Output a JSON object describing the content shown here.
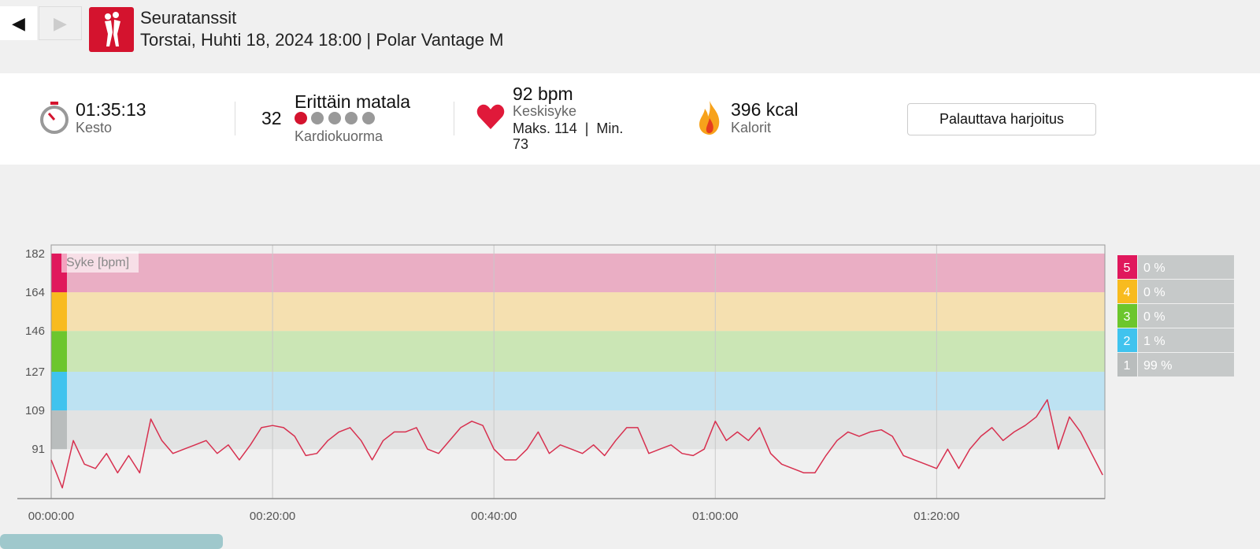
{
  "header": {
    "back": "◀",
    "forward": "▶",
    "sport": "Seuratanssit",
    "subtitle": "Torstai, Huhti 18, 2024 18:00 | Polar Vantage M"
  },
  "stats": {
    "duration": {
      "value": "01:35:13",
      "label": "Kesto"
    },
    "cardio_load": {
      "value": 32,
      "level": "Erittäin matala",
      "label": "Kardiokuorma"
    },
    "heart_rate": {
      "value": "92 bpm",
      "label": "Keskisyke",
      "range": "Maks. 114  |  Min. 73"
    },
    "calories": {
      "value": "396 kcal",
      "label": "Kalorit"
    },
    "button": "Palauttava harjoitus"
  },
  "chart_data": {
    "type": "line",
    "y_label": "Syke [bpm]",
    "color": "#d7304f",
    "x": [
      0,
      1,
      2,
      3,
      4,
      5,
      6,
      7,
      8,
      9,
      10,
      11,
      12,
      13,
      14,
      15,
      16,
      17,
      18,
      19,
      20,
      21,
      22,
      23,
      24,
      25,
      26,
      27,
      28,
      29,
      30,
      31,
      32,
      33,
      34,
      35,
      36,
      37,
      38,
      39,
      40,
      41,
      42,
      43,
      44,
      45,
      46,
      47,
      48,
      49,
      50,
      51,
      52,
      53,
      54,
      55,
      56,
      57,
      58,
      59,
      60,
      61,
      62,
      63,
      64,
      65,
      66,
      67,
      68,
      69,
      70,
      71,
      72,
      73,
      74,
      75,
      76,
      77,
      78,
      79,
      80,
      81,
      82,
      83,
      84,
      85,
      86,
      87,
      88,
      89,
      90,
      91,
      92,
      93,
      94,
      95
    ],
    "values": [
      86,
      73,
      95,
      84,
      82,
      89,
      80,
      88,
      80,
      105,
      95,
      89,
      91,
      93,
      95,
      89,
      93,
      86,
      93,
      101,
      102,
      101,
      97,
      88,
      89,
      95,
      99,
      101,
      95,
      86,
      95,
      99,
      99,
      101,
      91,
      89,
      95,
      101,
      104,
      102,
      91,
      86,
      86,
      91,
      99,
      89,
      93,
      91,
      89,
      93,
      88,
      95,
      101,
      101,
      89,
      91,
      93,
      89,
      88,
      91,
      104,
      95,
      99,
      95,
      101,
      89,
      84,
      82,
      80,
      80,
      88,
      95,
      99,
      97,
      99,
      100,
      97,
      88,
      86,
      84,
      82,
      91,
      82,
      91,
      97,
      101,
      95,
      99,
      102,
      106,
      114,
      91,
      106,
      99,
      89,
      79
    ],
    "xlim": [
      0,
      95.2
    ],
    "xticks": [
      {
        "value": 0,
        "label": "00:00:00"
      },
      {
        "value": 20,
        "label": "00:20:00"
      },
      {
        "value": 40,
        "label": "00:40:00"
      },
      {
        "value": 60,
        "label": "01:00:00"
      },
      {
        "value": 80,
        "label": "01:20:00"
      }
    ],
    "ylim": [
      68,
      186
    ],
    "yticks": [
      91,
      109,
      127,
      146,
      164,
      182
    ],
    "grid": true,
    "zones": [
      {
        "name": "1",
        "color": "#b9bdbd",
        "band_color": "#e2e3e3",
        "value": 99,
        "value_label": "99 %"
      },
      {
        "name": "2",
        "color": "#40c3ee",
        "band_color": "#bde2f2",
        "value": 1,
        "value_label": "1 %"
      },
      {
        "name": "3",
        "color": "#6cc62d",
        "band_color": "#cbe6b5",
        "value": 0,
        "value_label": "0 %"
      },
      {
        "name": "4",
        "color": "#f8bb1f",
        "band_color": "#f5e0b0",
        "value": 0,
        "value_label": "0 %"
      },
      {
        "name": "5",
        "color": "#e0185c",
        "band_color": "#eaaec4",
        "value": 0,
        "value_label": "0 %"
      }
    ]
  }
}
